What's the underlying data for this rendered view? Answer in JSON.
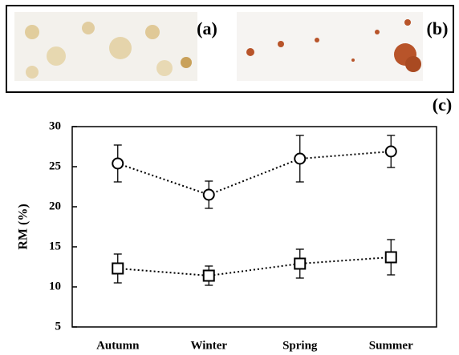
{
  "panel_labels": [
    "(a)",
    "(b)",
    "(c)"
  ],
  "chart_data": {
    "type": "line",
    "ylabel": "RM (%)",
    "categories": [
      "Autumn",
      "Winter",
      "Spring",
      "Summer"
    ],
    "series": [
      {
        "marker": "circle",
        "color": "#000000",
        "values": [
          25.4,
          21.5,
          26.0,
          26.9
        ],
        "error": [
          2.3,
          1.7,
          2.9,
          2.0
        ]
      },
      {
        "marker": "square",
        "color": "#000000",
        "values": [
          12.3,
          11.4,
          12.9,
          13.7
        ],
        "error": [
          1.8,
          1.2,
          1.8,
          2.2
        ]
      }
    ],
    "ylim": [
      5,
      30
    ],
    "yticks": [
      5,
      10,
      15,
      20,
      25,
      30
    ]
  }
}
